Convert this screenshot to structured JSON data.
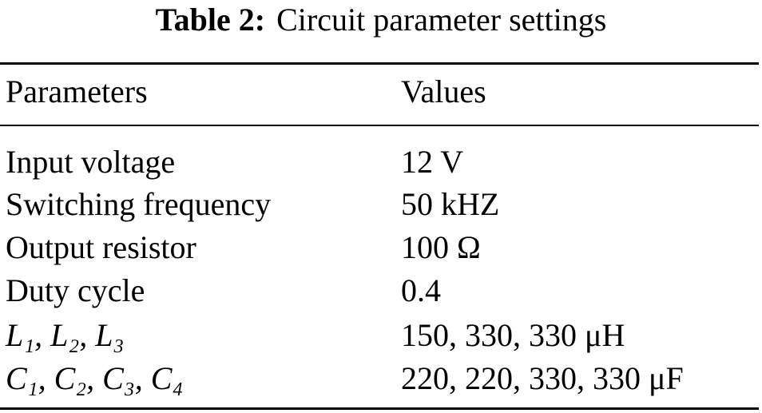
{
  "title": {
    "label": "Table 2:",
    "text": "Circuit parameter settings"
  },
  "table": {
    "header": [
      "Parameters",
      "Values"
    ],
    "rows": [
      [
        "Input voltage",
        "12 V"
      ],
      [
        "Switching frequency",
        "50 kHZ"
      ],
      [
        "Output resistor",
        "100 Ω"
      ],
      [
        "Duty cycle",
        "0.4"
      ],
      [
        "L₁, L₂, L₃",
        "150, 330, 330 μH"
      ],
      [
        "C₁, C₂, C₃, C₄",
        "220, 220, 330, 330 μF"
      ]
    ]
  }
}
